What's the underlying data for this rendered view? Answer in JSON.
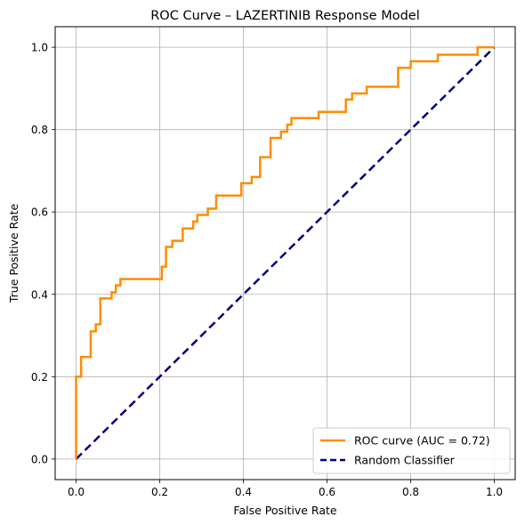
{
  "chart_data": {
    "type": "line",
    "title": "ROC Curve – LAZERTINIB Response Model",
    "xlabel": "False Positive Rate",
    "ylabel": "True Positive Rate",
    "xlim": [
      -0.05,
      1.05
    ],
    "ylim": [
      -0.05,
      1.05
    ],
    "grid": true,
    "legend_position": "bottom-right",
    "x_ticks": [
      "0.0",
      "0.2",
      "0.4",
      "0.6",
      "0.8",
      "1.0"
    ],
    "y_ticks": [
      "0.0",
      "0.2",
      "0.4",
      "0.6",
      "0.8",
      "1.0"
    ],
    "series": [
      {
        "name": "ROC curve (AUC = 0.72)",
        "color": "#ff8c00",
        "style": "solid",
        "x": [
          0.0,
          0.0,
          0.012,
          0.012,
          0.035,
          0.035,
          0.047,
          0.047,
          0.058,
          0.058,
          0.085,
          0.085,
          0.095,
          0.095,
          0.106,
          0.106,
          0.205,
          0.205,
          0.215,
          0.215,
          0.23,
          0.23,
          0.255,
          0.255,
          0.28,
          0.28,
          0.29,
          0.29,
          0.315,
          0.315,
          0.335,
          0.335,
          0.395,
          0.395,
          0.42,
          0.42,
          0.44,
          0.44,
          0.465,
          0.465,
          0.49,
          0.49,
          0.505,
          0.505,
          0.515,
          0.515,
          0.58,
          0.58,
          0.645,
          0.645,
          0.66,
          0.66,
          0.695,
          0.695,
          0.77,
          0.77,
          0.8,
          0.8,
          0.865,
          0.865,
          0.96,
          0.96,
          1.0
        ],
        "y": [
          0.0,
          0.2,
          0.2,
          0.248,
          0.248,
          0.31,
          0.31,
          0.327,
          0.327,
          0.39,
          0.39,
          0.405,
          0.405,
          0.422,
          0.422,
          0.437,
          0.437,
          0.467,
          0.467,
          0.515,
          0.515,
          0.53,
          0.53,
          0.56,
          0.56,
          0.577,
          0.577,
          0.593,
          0.593,
          0.608,
          0.608,
          0.64,
          0.64,
          0.67,
          0.67,
          0.685,
          0.685,
          0.733,
          0.733,
          0.78,
          0.78,
          0.795,
          0.795,
          0.812,
          0.812,
          0.828,
          0.828,
          0.843,
          0.843,
          0.873,
          0.873,
          0.888,
          0.888,
          0.904,
          0.904,
          0.95,
          0.95,
          0.966,
          0.966,
          0.982,
          0.982,
          1.0,
          1.0
        ]
      },
      {
        "name": "Random Classifier",
        "color": "#000080",
        "style": "dashed",
        "x": [
          0.0,
          1.0
        ],
        "y": [
          0.0,
          1.0
        ]
      }
    ]
  }
}
